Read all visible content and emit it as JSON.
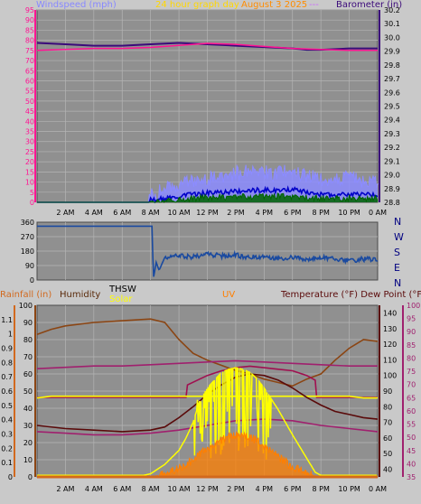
{
  "colors": {
    "page_bg": "#c9c9c9",
    "plot_bg": "#909090",
    "grid": "#b4b4b4",
    "windspeed_axis": "#ff1493",
    "barometer": "#3b0a7a",
    "wind_avg": "#0000c8",
    "wind_gust": "#8c8cff",
    "wind_low": "#006400",
    "temperature": "#5a0a0a",
    "dewpoint": "#a0206e",
    "humidity": "#8b4513",
    "rainfall": "#d2691e",
    "uv": "#ff7f00",
    "solar": "#ffff00",
    "thsw": "#a01050",
    "direction": "#1a4aa0"
  },
  "chart_data": [
    {
      "type": "line",
      "title": "24 hour graph day",
      "date_label": "August 3 2025",
      "suffix_label": "---",
      "left_axis_label": "Windspeed (mph)",
      "right_axis_label": "Barometer (in)",
      "x_labels": [
        "2 AM",
        "4 AM",
        "6 AM",
        "8 AM",
        "10 AM",
        "12 PM",
        "2 PM",
        "4 PM",
        "6 PM",
        "8 PM",
        "10 PM",
        "0 AM"
      ],
      "x_range_hours": [
        0,
        24
      ],
      "left_ticks": [
        0,
        5,
        10,
        15,
        20,
        25,
        30,
        35,
        40,
        45,
        50,
        55,
        60,
        65,
        70,
        75,
        80,
        85,
        90,
        95
      ],
      "left_ylim": [
        0,
        95
      ],
      "right_ticks": [
        28.8,
        28.9,
        29,
        29.1,
        29.2,
        29.3,
        29.4,
        29.5,
        29.6,
        29.7,
        29.8,
        29.9,
        30,
        30.1,
        30.2
      ],
      "right_ylim": [
        28.8,
        30.2
      ],
      "series": [
        {
          "key": "barometer",
          "axis": "right",
          "x": [
            0,
            2,
            4,
            6,
            8,
            10,
            12,
            14,
            16,
            18,
            19,
            20,
            22,
            24
          ],
          "y": [
            29.96,
            29.95,
            29.94,
            29.94,
            29.95,
            29.96,
            29.95,
            29.94,
            29.93,
            29.92,
            29.91,
            29.91,
            29.92,
            29.92
          ]
        },
        {
          "key": "windspeed_axis",
          "axis": "left",
          "x": [
            0,
            2,
            4,
            6,
            8,
            10,
            12,
            14,
            16,
            18,
            20,
            22,
            24
          ],
          "y": [
            75,
            75.5,
            76,
            76,
            76.5,
            77.5,
            78.5,
            78,
            77,
            76,
            75.5,
            75,
            75
          ]
        },
        {
          "key": "wind_gust",
          "axis": "left",
          "x": [
            0,
            7.9,
            8,
            9,
            10,
            11,
            12,
            13,
            14,
            15,
            16,
            17,
            18,
            19,
            20,
            21,
            22,
            23,
            24
          ],
          "y": [
            0,
            0,
            3,
            6,
            9,
            10,
            11,
            13,
            14,
            15,
            15,
            14,
            15,
            13,
            12,
            11,
            12,
            11,
            10
          ]
        },
        {
          "key": "wind_avg",
          "axis": "left",
          "x": [
            0,
            7.9,
            8,
            9,
            10,
            11,
            12,
            13,
            14,
            15,
            16,
            17,
            18,
            19,
            20,
            21,
            22,
            23,
            24
          ],
          "y": [
            0,
            0,
            1,
            2,
            3,
            4,
            4.5,
            5,
            5.5,
            6,
            6,
            6,
            6.5,
            5,
            4,
            3.5,
            4,
            4,
            3.5
          ]
        },
        {
          "key": "wind_low",
          "axis": "left",
          "x": [
            0,
            7.9,
            8,
            9,
            10,
            11,
            12,
            13,
            14,
            15,
            16,
            17,
            18,
            19,
            20,
            21,
            22,
            23,
            24
          ],
          "y": [
            0,
            0,
            0.5,
            1,
            1.5,
            2,
            2.5,
            2.5,
            3,
            3,
            3,
            3,
            3,
            2.5,
            2,
            2,
            2,
            2,
            2
          ]
        }
      ]
    },
    {
      "type": "line",
      "right_labels": [
        "N",
        "W",
        "S",
        "E",
        "N"
      ],
      "left_ticks": [
        0,
        90,
        180,
        270,
        360
      ],
      "ylim": [
        0,
        360
      ],
      "x_range_hours": [
        0,
        24
      ],
      "series": [
        {
          "key": "direction",
          "x": [
            0,
            8.1,
            8.2,
            8.4,
            8.6,
            9,
            10,
            11,
            12,
            13,
            14,
            15,
            16,
            17,
            18,
            19,
            20,
            21,
            22,
            23,
            24
          ],
          "y": [
            335,
            335,
            10,
            110,
            60,
            140,
            150,
            145,
            160,
            150,
            155,
            140,
            150,
            135,
            140,
            125,
            145,
            130,
            120,
            130,
            125
          ]
        }
      ]
    },
    {
      "type": "line",
      "labels": {
        "rainfall": "Rainfall (in)",
        "humidity": "Humidity",
        "thsw": "THSW",
        "solar": "Solar",
        "uv": "UV",
        "temperature": "Temperature (°F) Dew Point (°F)"
      },
      "x_labels": [
        "2 AM",
        "4 AM",
        "6 AM",
        "8 AM",
        "10 AM",
        "12 PM",
        "2 PM",
        "4 PM",
        "6 PM",
        "8 PM",
        "10 PM",
        "0 AM"
      ],
      "x_range_hours": [
        0,
        24
      ],
      "humidity_ticks": [
        0,
        10,
        20,
        30,
        40,
        50,
        60,
        70,
        80,
        90,
        100
      ],
      "humidity_ylim": [
        0,
        100
      ],
      "rainfall_ticks": [
        0,
        0.1,
        0.2,
        0.3,
        0.4,
        0.5,
        0.6,
        0.7,
        0.8,
        0.9,
        1,
        1.1
      ],
      "rainfall_ylim": [
        0,
        1.2
      ],
      "temp_ticks": [
        40,
        50,
        60,
        70,
        80,
        90,
        100,
        110,
        120,
        130,
        140
      ],
      "temp_ylim": [
        35,
        145
      ],
      "dew_ticks": [
        35,
        40,
        45,
        50,
        55,
        60,
        65,
        70,
        75,
        80,
        85,
        90,
        95,
        100
      ],
      "dew_ylim": [
        35,
        100
      ],
      "series": [
        {
          "key": "humidity",
          "axis": "humidity",
          "x": [
            0,
            1,
            2,
            4,
            6,
            8,
            9,
            10,
            11,
            12,
            13,
            14,
            15,
            16,
            17,
            18,
            19,
            20,
            21,
            22,
            23,
            24
          ],
          "y": [
            83,
            86,
            88,
            90,
            91,
            92,
            90,
            80,
            72,
            68,
            65,
            62,
            60,
            57,
            55,
            53,
            57,
            60,
            68,
            75,
            80,
            79
          ]
        },
        {
          "key": "dewpoint",
          "axis": "dew",
          "x": [
            0,
            2,
            4,
            6,
            8,
            10,
            12,
            14,
            16,
            18,
            20,
            22,
            24
          ],
          "y": [
            76,
            76.5,
            77,
            77,
            77.5,
            78,
            78.5,
            79,
            78.5,
            78,
            77.5,
            77,
            77
          ]
        },
        {
          "key": "thsw",
          "axis": "temp",
          "x": [
            0,
            10.5,
            10.6,
            12,
            13,
            14,
            15,
            16,
            17,
            18,
            19,
            19.6,
            19.7,
            24
          ],
          "y": [
            86,
            86,
            94,
            100,
            103,
            105,
            106,
            105,
            104,
            103,
            100,
            97,
            86,
            86
          ]
        },
        {
          "key": "solar",
          "axis": "humidity",
          "x": [
            0,
            1,
            2,
            22,
            23,
            24
          ],
          "y": [
            46,
            47,
            47,
            47,
            46,
            46
          ]
        },
        {
          "key": "temperature",
          "axis": "temp",
          "x": [
            0,
            2,
            4,
            6,
            8,
            9,
            10,
            11,
            12,
            13,
            14,
            15,
            16,
            17,
            18,
            19,
            20,
            21,
            22,
            23,
            24
          ],
          "y": [
            68,
            66,
            65,
            64,
            65,
            67,
            73,
            80,
            88,
            94,
            99,
            101,
            100,
            97,
            92,
            86,
            81,
            77,
            75,
            73,
            72
          ]
        },
        {
          "key": "dewpoint",
          "axis": "temp",
          "x": [
            0,
            2,
            4,
            6,
            8,
            10,
            12,
            14,
            16,
            18,
            20,
            22,
            24
          ],
          "y": [
            64,
            63,
            62,
            62,
            63,
            65,
            68,
            71,
            72,
            71,
            68,
            66,
            64
          ]
        },
        {
          "key": "solar",
          "axis": "temp",
          "x": [
            0,
            7.5,
            8,
            9,
            10,
            10.5,
            11,
            11.5,
            12,
            12.5,
            13,
            13.5,
            14,
            14.5,
            15,
            15.5,
            16,
            16.5,
            17,
            18,
            19,
            19.6,
            20,
            24
          ],
          "y": [
            36,
            36,
            37,
            43,
            52,
            60,
            70,
            85,
            92,
            97,
            102,
            104,
            105,
            104,
            102,
            98,
            92,
            85,
            78,
            62,
            47,
            38,
            36,
            36
          ]
        },
        {
          "key": "uv",
          "axis": "rainfall",
          "x": [
            0,
            8,
            9,
            10,
            11,
            12,
            13,
            14,
            15,
            16,
            17,
            18,
            19,
            20,
            24
          ],
          "y": [
            0,
            0,
            0.02,
            0.06,
            0.12,
            0.2,
            0.26,
            0.3,
            0.28,
            0.22,
            0.14,
            0.07,
            0.02,
            0,
            0
          ]
        },
        {
          "key": "rainfall",
          "axis": "rainfall",
          "x": [
            0,
            24
          ],
          "y": [
            0,
            0
          ]
        }
      ]
    }
  ]
}
